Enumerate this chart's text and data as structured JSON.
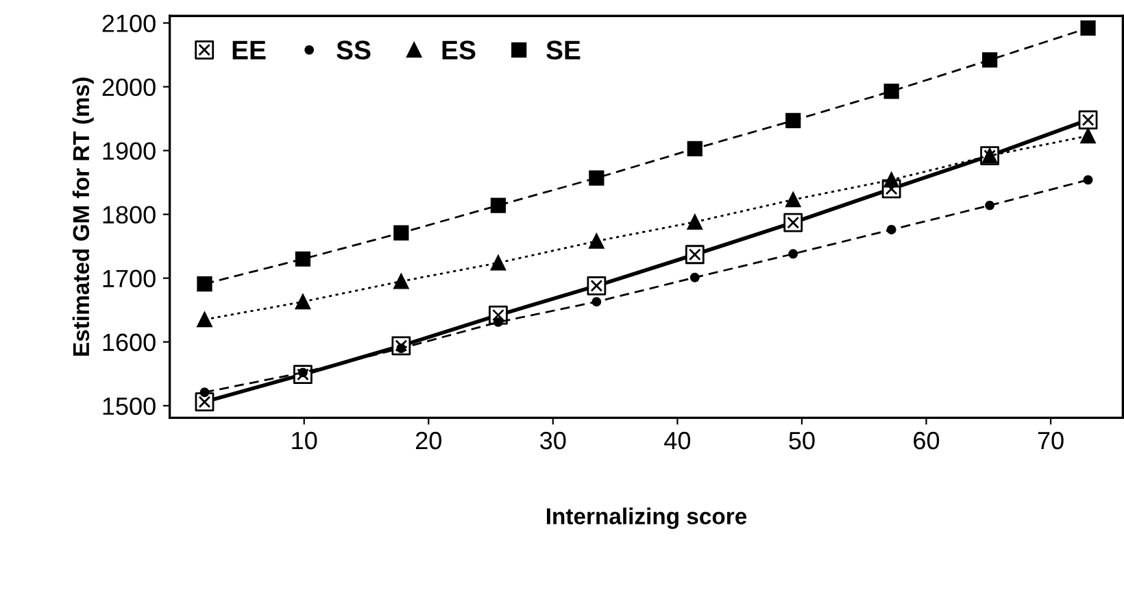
{
  "chart_data": {
    "type": "line",
    "xlabel": "Internalizing score",
    "ylabel": "Estimated GM for RT (ms)",
    "x": [
      2,
      9.9,
      17.8,
      25.6,
      33.5,
      41.4,
      49.3,
      57.2,
      65.1,
      73
    ],
    "series": [
      {
        "name": "EE",
        "color": "#000000",
        "marker": "cross",
        "line_style": "solid",
        "values": [
          1506,
          1549,
          1594,
          1642,
          1688,
          1737,
          1787,
          1840,
          1892,
          1948
        ]
      },
      {
        "name": "SS",
        "color": "#000000",
        "marker": "circle",
        "line_style": "dashed",
        "values": [
          1521,
          1552,
          1590,
          1631,
          1663,
          1701,
          1738,
          1776,
          1814,
          1854
        ]
      },
      {
        "name": "ES",
        "color": "#000000",
        "marker": "triangle",
        "line_style": "dotted",
        "values": [
          1635,
          1663,
          1695,
          1724,
          1758,
          1788,
          1823,
          1854,
          1892,
          1923
        ]
      },
      {
        "name": "SE",
        "color": "#000000",
        "marker": "square",
        "line_style": "dashed",
        "values": [
          1691,
          1730,
          1771,
          1814,
          1857,
          1903,
          1947,
          1993,
          2042,
          2092
        ]
      }
    ],
    "xlim": [
      -0.8,
      75.8
    ],
    "ylim": [
      1481,
      2111
    ],
    "xticks": [
      10,
      20,
      30,
      40,
      50,
      60,
      70
    ],
    "yticks": [
      1500,
      1600,
      1700,
      1800,
      1900,
      2000,
      2100
    ],
    "grid": false,
    "legend": "top left"
  }
}
